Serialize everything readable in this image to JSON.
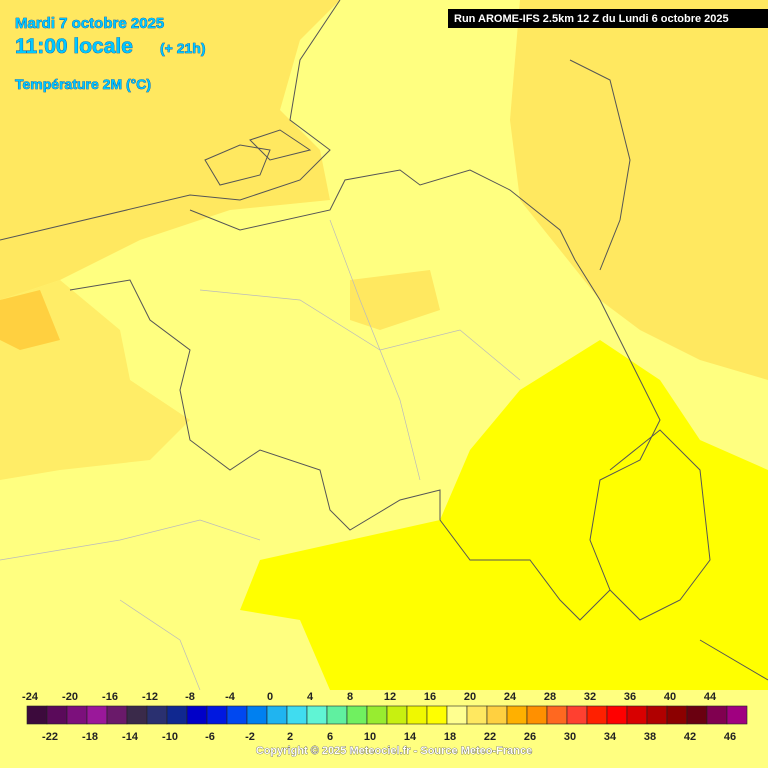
{
  "header": {
    "date": "Mardi 7 octobre 2025",
    "time": "11:00 locale",
    "offset": "(+ 21h)",
    "variable": "Température 2M (°C)",
    "run": "Run AROME-IFS 2.5km 12 Z du Lundi 6 octobre 2025"
  },
  "legend": {
    "labels": [
      -24,
      -22,
      -20,
      -18,
      -16,
      -14,
      -12,
      -10,
      -8,
      -6,
      -4,
      -2,
      0,
      2,
      4,
      6,
      8,
      10,
      12,
      14,
      16,
      18,
      20,
      22,
      24,
      26,
      28,
      30,
      32,
      34,
      36,
      38,
      40,
      42,
      44,
      46
    ],
    "colors": [
      "#3c0a3c",
      "#5a0a5a",
      "#7c107c",
      "#9a189a",
      "#6a1a6a",
      "#3a2a4a",
      "#2a3070",
      "#102890",
      "#0000c8",
      "#0018e0",
      "#0048f0",
      "#0080f0",
      "#20b4f0",
      "#40dcf0",
      "#60f4d4",
      "#60f0a0",
      "#70f060",
      "#98ec30",
      "#c8f010",
      "#f0f800",
      "#ffff00",
      "#ffff90",
      "#ffe860",
      "#ffd040",
      "#ffb000",
      "#ff9000",
      "#ff6820",
      "#ff4030",
      "#ff2000",
      "#ff0000",
      "#d80000",
      "#b00000",
      "#8c0000",
      "#6a0010",
      "#800050",
      "#a00080"
    ]
  },
  "footer": "Copyright © 2025 Meteociel.fr - Source Meteo-France"
}
